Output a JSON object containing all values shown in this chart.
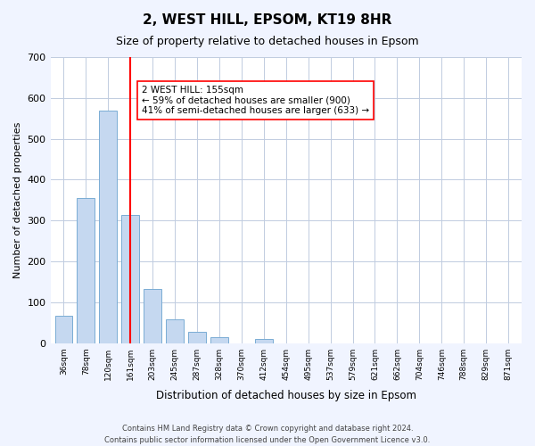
{
  "title": "2, WEST HILL, EPSOM, KT19 8HR",
  "subtitle": "Size of property relative to detached houses in Epsom",
  "xlabel": "Distribution of detached houses by size in Epsom",
  "ylabel": "Number of detached properties",
  "bar_labels": [
    "36sqm",
    "78sqm",
    "120sqm",
    "161sqm",
    "203sqm",
    "245sqm",
    "287sqm",
    "328sqm",
    "370sqm",
    "412sqm",
    "454sqm",
    "495sqm",
    "537sqm",
    "579sqm",
    "621sqm",
    "662sqm",
    "704sqm",
    "746sqm",
    "788sqm",
    "829sqm",
    "871sqm"
  ],
  "bar_values": [
    68,
    355,
    568,
    313,
    133,
    58,
    28,
    14,
    0,
    10,
    0,
    0,
    0,
    0,
    0,
    0,
    0,
    0,
    0,
    0,
    0
  ],
  "bar_color": "#c5d8f0",
  "bar_edge_color": "#7aadd4",
  "ylim": [
    0,
    700
  ],
  "yticks": [
    0,
    100,
    200,
    300,
    400,
    500,
    600,
    700
  ],
  "red_line_x": 3,
  "annotation_text": "2 WEST HILL: 155sqm\n← 59% of detached houses are smaller (900)\n41% of semi-detached houses are larger (633) →",
  "footnote1": "Contains HM Land Registry data © Crown copyright and database right 2024.",
  "footnote2": "Contains public sector information licensed under the Open Government Licence v3.0.",
  "background_color": "#f0f4ff",
  "plot_bg_color": "#ffffff",
  "grid_color": "#c0cce0"
}
